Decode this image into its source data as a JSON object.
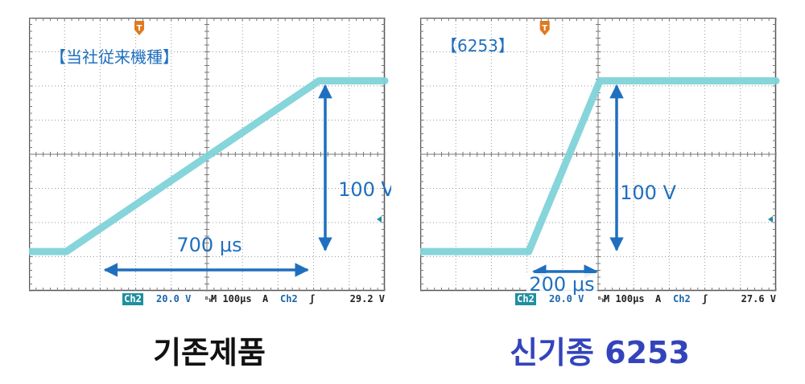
{
  "colors": {
    "trace": "#7fd3d8",
    "annotation": "#1f6fbe",
    "grid": "#9a9a9a",
    "status_text": "#1a66aa",
    "ch2_badge": "#1f8fa0",
    "caption_right": "#3344bb",
    "trigger_marker": "#e07a1e"
  },
  "chart_data": [
    {
      "type": "line",
      "panel_title": "【当社従来機種】",
      "x_unit": "µs",
      "y_unit": "V",
      "x_per_div": 100,
      "y_per_div": 20,
      "x_range": [
        -500,
        500
      ],
      "y_range": [
        -80,
        80
      ],
      "series": [
        {
          "x": [
            -500,
            -395,
            315,
            500
          ],
          "y": [
            -57,
            -57,
            43,
            43
          ]
        }
      ],
      "annotations": {
        "voltage_label": "100 V",
        "time_label": "700 μs"
      },
      "status_bar": {
        "channel": "Ch2",
        "volts_per_div": "20.0 V",
        "bw_mark": "ᴮw",
        "timebase": "M 100µs",
        "trigger_mode": "A",
        "trigger_channel": "Ch2",
        "slope_symbol": "ʃ",
        "trigger_level": "29.2 V"
      },
      "caption": "기존제품"
    },
    {
      "type": "line",
      "panel_title": "【6253】",
      "x_unit": "µs",
      "y_unit": "V",
      "x_per_div": 100,
      "y_per_div": 20,
      "x_range": [
        -500,
        500
      ],
      "y_range": [
        -80,
        80
      ],
      "series": [
        {
          "x": [
            -500,
            -195,
            5,
            500
          ],
          "y": [
            -57,
            -57,
            43,
            43
          ]
        }
      ],
      "annotations": {
        "voltage_label": "100 V",
        "time_label": "200 μs"
      },
      "status_bar": {
        "channel": "Ch2",
        "volts_per_div": "20.0 V",
        "bw_mark": "ᴮw",
        "timebase": "M 100µs",
        "trigger_mode": "A",
        "trigger_channel": "Ch2",
        "slope_symbol": "ʃ",
        "trigger_level": "27.6 V"
      },
      "caption": "신기종 6253"
    }
  ]
}
